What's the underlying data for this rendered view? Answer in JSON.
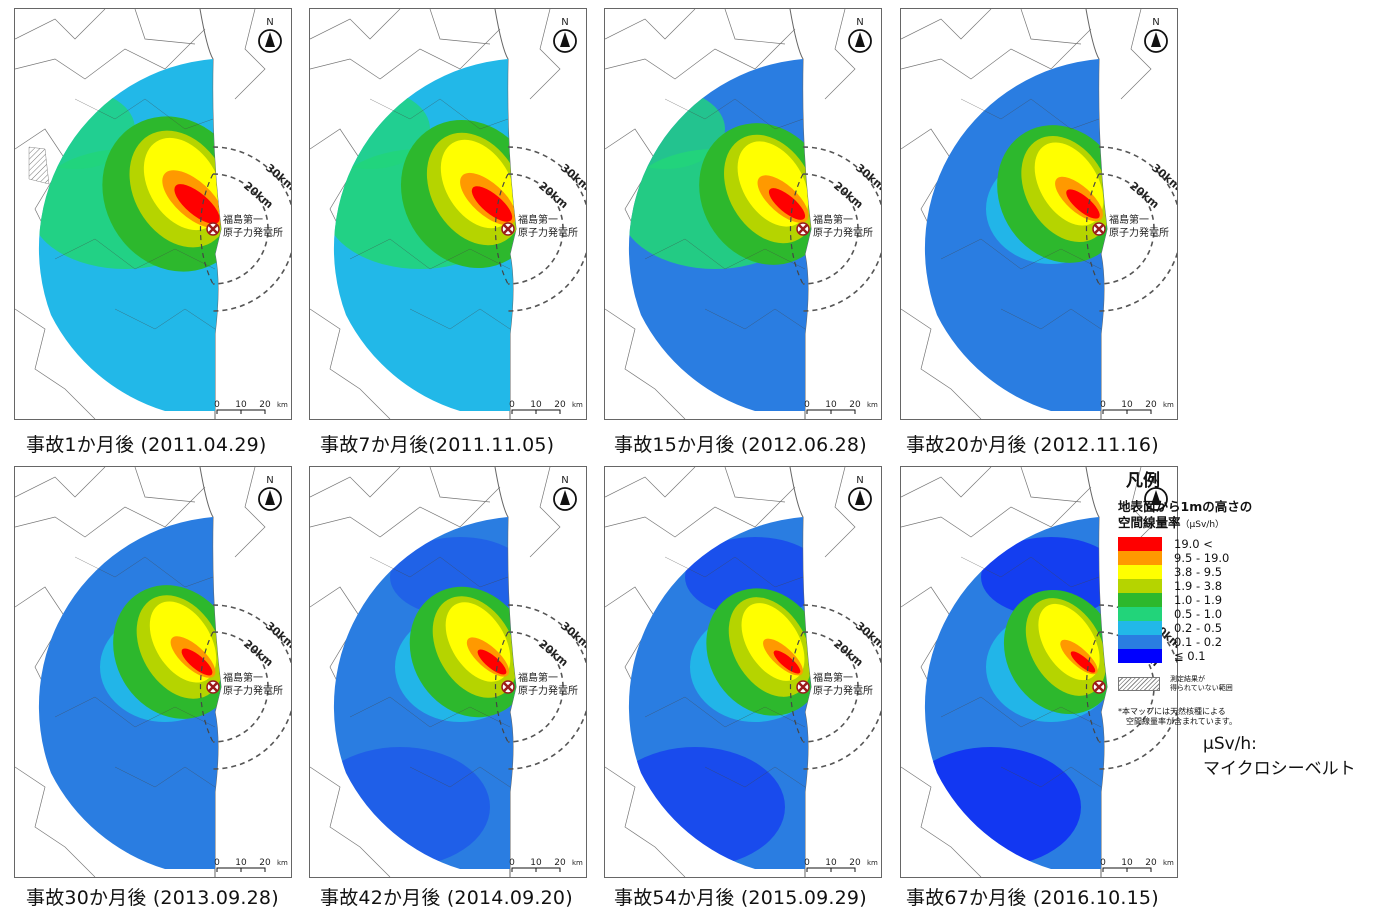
{
  "colors": {
    "level_gt19": "#ff0000",
    "level_9_5_19": "#ff9900",
    "level_3_8_9_5": "#ffff00",
    "level_1_9_3_8": "#b5d400",
    "level_1_0_1_9": "#2db82d",
    "level_0_5_1_0": "#22d47a",
    "level_0_2_0_5": "#22b8e8",
    "level_0_1_0_2": "#2a7de1",
    "level_lt0_1": "#0000ff",
    "plant_marker": "#9b1c1c"
  },
  "map_labels": {
    "north": "N",
    "ring_30": "30km",
    "ring_20": "20km",
    "plant_line1": "福島第一",
    "plant_line2": "原子力発電所",
    "scale_0": "0",
    "scale_10": "10",
    "scale_20": "20",
    "scale_unit": "km"
  },
  "panels": [
    {
      "caption": "事故1か月後 (2011.04.29)",
      "dose_level": 1.0
    },
    {
      "caption": "事故7か月後(2011.11.05)",
      "dose_level": 0.82
    },
    {
      "caption": "事故15か月後 (2012.06.28)",
      "dose_level": 0.66
    },
    {
      "caption": "事故20か月後 (2012.11.16)",
      "dose_level": 0.56
    },
    {
      "caption": "事故30か月後 (2013.09.28)",
      "dose_level": 0.46
    },
    {
      "caption": "事故42か月後 (2014.09.20)",
      "dose_level": 0.38
    },
    {
      "caption": "事故54か月後 (2015.09.29)",
      "dose_level": 0.3
    },
    {
      "caption": "事故67か月後 (2016.10.15)",
      "dose_level": 0.22
    }
  ],
  "legend": {
    "title": "凡例",
    "subtitle_line1": "地表面から1mの高さの",
    "subtitle_line2": "空間線量率",
    "unit": "（μSv/h）",
    "items": [
      {
        "label": "19.0 <",
        "color": "#ff0000"
      },
      {
        "label": "9.5 - 19.0",
        "color": "#ff9900"
      },
      {
        "label": "3.8 - 9.5",
        "color": "#ffff00"
      },
      {
        "label": "1.9 - 3.8",
        "color": "#b5d400"
      },
      {
        "label": "1.0 - 1.9",
        "color": "#2db82d"
      },
      {
        "label": "0.5 - 1.0",
        "color": "#22d47a"
      },
      {
        "label": "0.2 - 0.5",
        "color": "#22b8e8"
      },
      {
        "label": "0.1 - 0.2",
        "color": "#2a7de1"
      },
      {
        "label": "≦ 0.1",
        "color": "#0000ff"
      }
    ],
    "hatch_line1": "測定結果が",
    "hatch_line2": "得られていない範囲",
    "note_line1": "*本マップには天然核種による",
    "note_line2": "空間線量率が含まれています。"
  },
  "unit_note": {
    "line1": "μSv/h:",
    "line2": "マイクロシーベルト"
  }
}
